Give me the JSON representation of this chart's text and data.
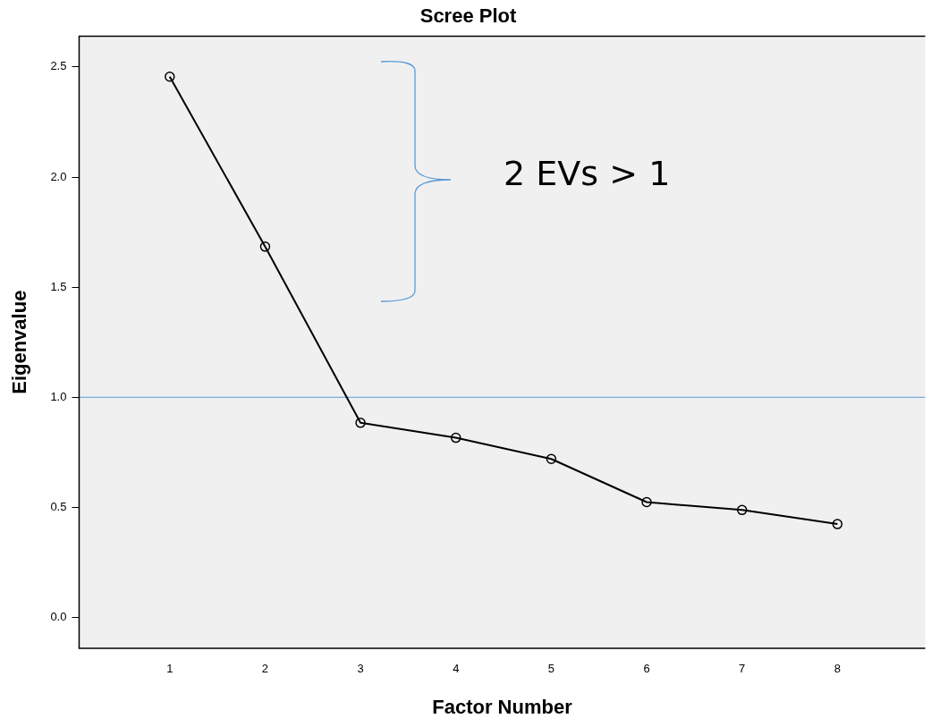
{
  "chart_data": {
    "type": "line",
    "title": "Scree Plot",
    "xlabel": "Factor Number",
    "ylabel": "Eigenvalue",
    "x": [
      1,
      2,
      3,
      4,
      5,
      6,
      7,
      8
    ],
    "series": [
      {
        "color": "#000000",
        "values": [
          2.456,
          1.684,
          0.884,
          0.816,
          0.72,
          0.524,
          0.488,
          0.424
        ]
      }
    ],
    "xlim": [
      0.05,
      8.92
    ],
    "xticks": [
      1,
      2,
      3,
      4,
      5,
      6,
      7,
      8
    ],
    "ylim": [
      -0.14,
      2.64
    ],
    "yticks": [
      {
        "value": 0,
        "label": "0.0"
      },
      {
        "value": 0.5,
        "label": "0.5"
      },
      {
        "value": 1,
        "label": "1.0"
      },
      {
        "value": 1.5,
        "label": "1.5"
      },
      {
        "value": 2,
        "label": "2.0"
      },
      {
        "value": 2.5,
        "label": "2.5"
      }
    ],
    "ref_lines": [
      {
        "axis": "y",
        "value": 1,
        "color": "#5b9bd5"
      }
    ],
    "annotations": [
      "2 EVs > 1"
    ],
    "marker": "circle",
    "line_style": "solid",
    "grid": false,
    "legend": false
  }
}
